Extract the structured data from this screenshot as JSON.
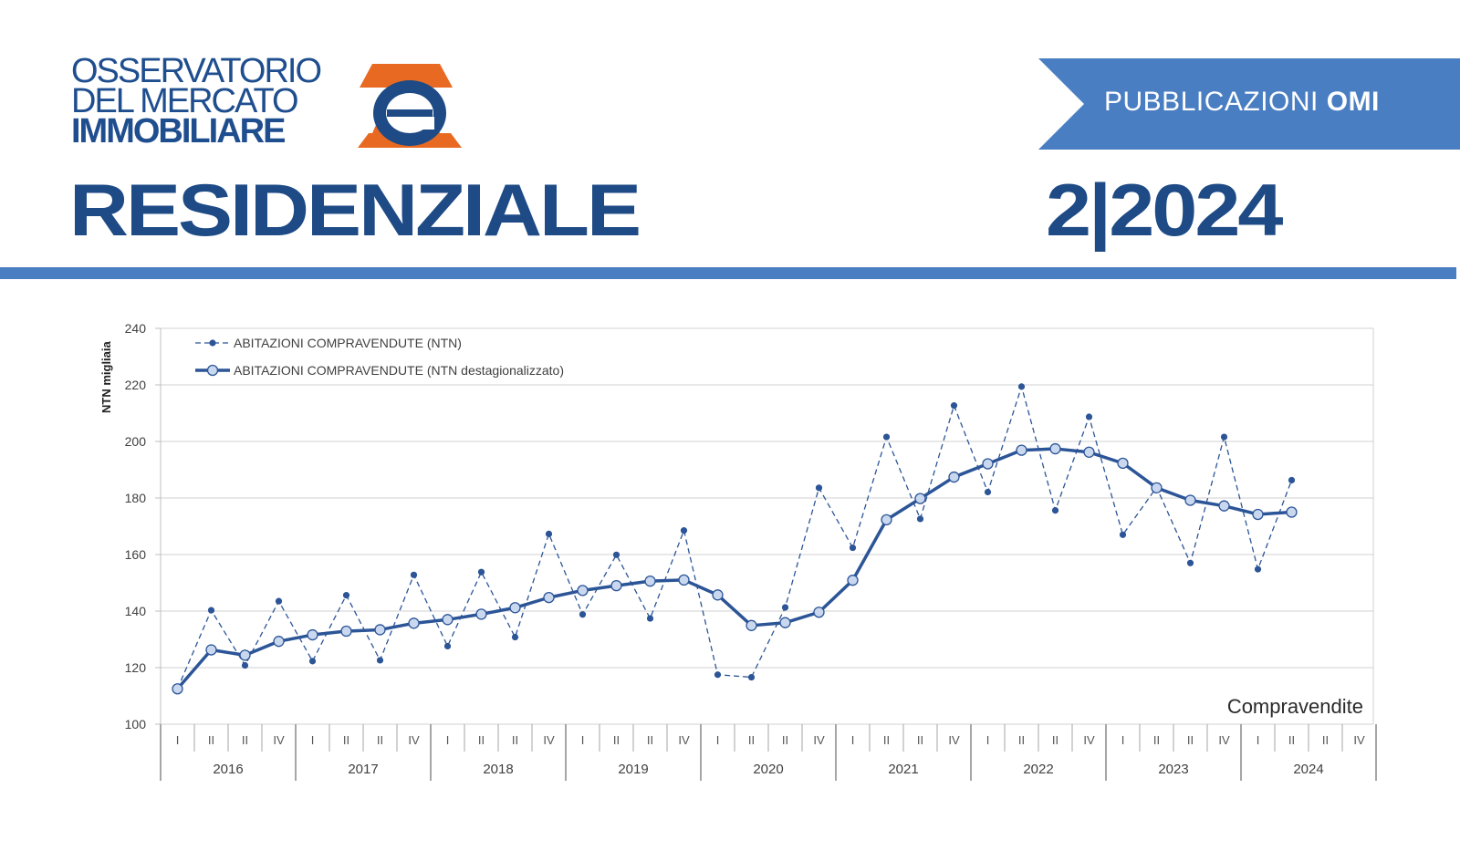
{
  "header": {
    "logo_lines": [
      "OSSERVATORIO",
      "DEL MERCATO",
      "IMMOBILIARE"
    ],
    "banner_prefix": "PUBBLICAZIONI",
    "banner_strong": "OMI",
    "title": "RESIDENZIALE",
    "issue": "2|2024"
  },
  "colors": {
    "brand_blue": "#1e4a85",
    "banner_blue": "#4a7ec2",
    "logo_orange": "#e86a22",
    "series_line": "#2c5597",
    "marker_fill": "#c9d8ef"
  },
  "chart_data": {
    "type": "line",
    "caption": "Compravendite",
    "ylabel": "NTN migliaia",
    "ylim": [
      100,
      240
    ],
    "yticks": [
      100,
      120,
      140,
      160,
      180,
      200,
      220,
      240
    ],
    "grid": true,
    "legend_position": "top-left",
    "years": [
      "2016",
      "2017",
      "2018",
      "2019",
      "2020",
      "2021",
      "2022",
      "2023",
      "2024"
    ],
    "quarters": [
      "I",
      "II",
      "II",
      "IV"
    ],
    "series": [
      {
        "name": "ABITAZIONI COMPRAVENDUTE (NTN)",
        "style": "dashed",
        "values": [
          112.5,
          140.3,
          120.8,
          143.5,
          122.3,
          145.6,
          122.6,
          152.8,
          127.6,
          153.8,
          130.8,
          167.3,
          138.8,
          159.9,
          137.4,
          168.5,
          117.5,
          116.6,
          141.3,
          183.6,
          162.4,
          201.6,
          172.6,
          212.7,
          182.1,
          219.4,
          175.6,
          208.7,
          167.0,
          183.8,
          157.0,
          201.6,
          154.8,
          186.3
        ]
      },
      {
        "name": "ABITAZIONI COMPRAVENDUTE (NTN destagionalizzato)",
        "style": "solid",
        "values": [
          112.5,
          126.3,
          124.4,
          129.3,
          131.6,
          132.9,
          133.4,
          135.7,
          137.0,
          138.9,
          141.2,
          144.8,
          147.3,
          149.0,
          150.6,
          151.0,
          145.7,
          134.9,
          135.9,
          139.6,
          150.9,
          172.3,
          179.8,
          187.4,
          192.1,
          196.9,
          197.4,
          196.2,
          192.3,
          183.6,
          179.2,
          177.2,
          174.2,
          175.0
        ]
      }
    ]
  }
}
